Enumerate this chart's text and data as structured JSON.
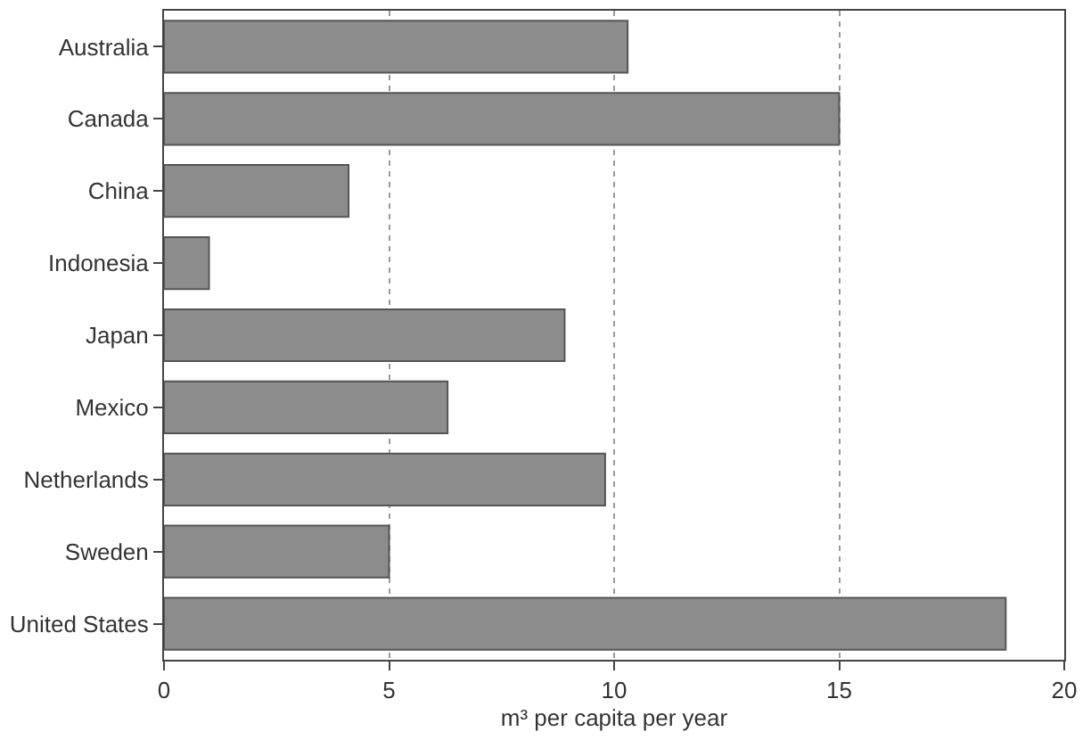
{
  "chart_data": {
    "type": "bar",
    "orientation": "horizontal",
    "xlabel": "m³ per capita per year",
    "categories": [
      "Australia",
      "Canada",
      "China",
      "Indonesia",
      "Japan",
      "Mexico",
      "Netherlands",
      "Sweden",
      "United States"
    ],
    "values": [
      10.3,
      15.0,
      4.1,
      1.0,
      8.9,
      6.3,
      9.8,
      5.0,
      18.7
    ],
    "color": "#8c8c8c",
    "xlim": [
      0,
      20
    ],
    "xticks": [
      0,
      5,
      10,
      15,
      20
    ],
    "grid": "x"
  }
}
